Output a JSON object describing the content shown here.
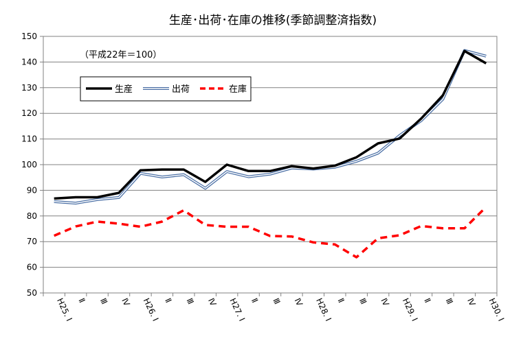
{
  "chart_data": {
    "type": "line",
    "title": "生産･出荷･在庫の推移(季節調整済指数)",
    "note": "（平成22年＝100）",
    "categories": [
      "H25. Ⅰ",
      "Ⅱ",
      "Ⅲ",
      "Ⅳ",
      "H26. Ⅰ",
      "Ⅱ",
      "Ⅲ",
      "Ⅳ",
      "H27. Ⅰ",
      "Ⅱ",
      "Ⅲ",
      "Ⅳ",
      "H28. Ⅰ",
      "Ⅱ",
      "Ⅲ",
      "Ⅳ",
      "H29. Ⅰ",
      "Ⅱ",
      "Ⅲ",
      "Ⅳ",
      "H30. Ⅰ"
    ],
    "ylim": [
      50,
      150
    ],
    "yticks": [
      50,
      60,
      70,
      80,
      90,
      100,
      110,
      120,
      130,
      140,
      150
    ],
    "grid": true,
    "legend": "top-left",
    "series": [
      {
        "name": "生産",
        "color": "#000000",
        "style": "solid-thick",
        "values": [
          86.8,
          87.3,
          87.3,
          89.0,
          97.8,
          98.1,
          98.1,
          93.3,
          100.0,
          97.5,
          97.5,
          99.4,
          98.5,
          99.6,
          102.9,
          108.3,
          110.2,
          118.0,
          127.0,
          144.3,
          139.5
        ]
      },
      {
        "name": "出荷",
        "color": "#4a6fa5",
        "style": "double",
        "values": [
          85.6,
          85.0,
          86.4,
          87.2,
          96.6,
          95.2,
          96.1,
          90.8,
          97.3,
          95.3,
          96.3,
          98.7,
          98.3,
          99.0,
          101.3,
          104.5,
          111.4,
          117.2,
          125.5,
          144.5,
          142.3
        ]
      },
      {
        "name": "在庫",
        "color": "#ff0000",
        "style": "dashed",
        "values": [
          72.3,
          75.9,
          77.8,
          77.0,
          75.8,
          77.8,
          82.2,
          76.5,
          75.8,
          75.8,
          72.2,
          72.0,
          69.7,
          68.9,
          63.9,
          71.3,
          72.5,
          76.1,
          75.2,
          75.2,
          83.5
        ]
      }
    ]
  }
}
